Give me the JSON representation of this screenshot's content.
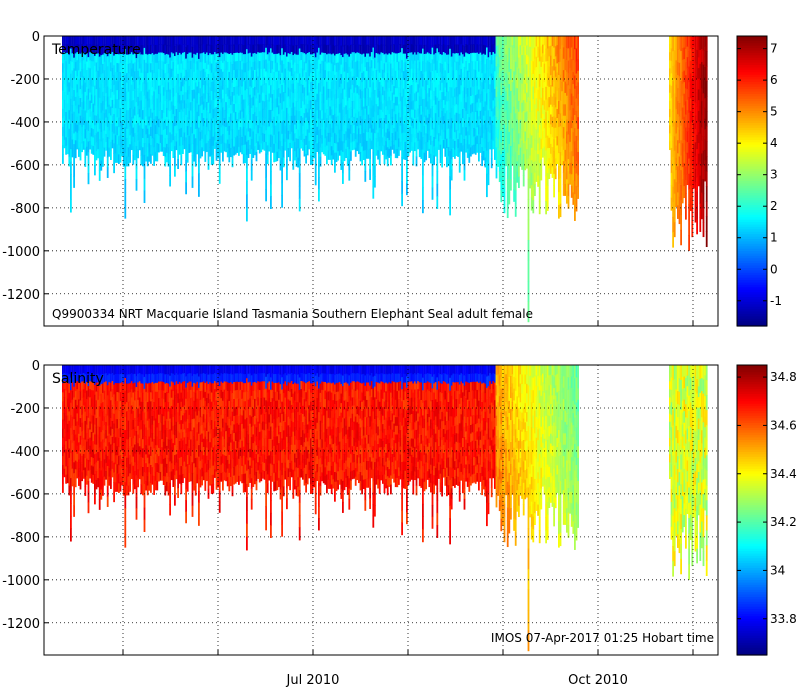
{
  "chart_data": [
    {
      "type": "heatmap",
      "title": "Temperature",
      "annotation": "Q9900334 NRT Macquarie Island Tasmania Southern Elephant Seal adult female",
      "y_ticks": [
        "0",
        "-200",
        "-400",
        "-600",
        "-800",
        "-1000",
        "-1200"
      ],
      "y_tick_values": [
        0,
        -200,
        -400,
        -600,
        -800,
        -1000,
        -1200
      ],
      "ylim": [
        -1350,
        0
      ],
      "x_ticks": [
        "Jul 2010",
        "Oct 2010"
      ],
      "colorbar": {
        "range": [
          -1.8,
          7.4
        ],
        "ticks": [
          "7",
          "6",
          "5",
          "4",
          "3",
          "2",
          "1",
          "0",
          "-1"
        ],
        "tick_values": [
          7,
          6,
          5,
          4,
          3,
          2,
          1,
          0,
          -1
        ]
      },
      "grid": true,
      "colormap": "jet"
    },
    {
      "type": "heatmap",
      "title": "Salinity",
      "annotation": "IMOS 07-Apr-2017 01:25 Hobart time",
      "y_ticks": [
        "0",
        "-200",
        "-400",
        "-600",
        "-800",
        "-1000",
        "-1200"
      ],
      "y_tick_values": [
        0,
        -200,
        -400,
        -600,
        -800,
        -1000,
        -1200
      ],
      "ylim": [
        -1350,
        0
      ],
      "x_ticks": [
        "Jul 2010",
        "Oct 2010"
      ],
      "colorbar": {
        "range": [
          33.65,
          34.85
        ],
        "ticks": [
          "34.8",
          "34.6",
          "34.4",
          "34.2",
          "34",
          "33.8"
        ],
        "tick_values": [
          34.8,
          34.6,
          34.4,
          34.2,
          34.0,
          33.8
        ]
      },
      "grid": true,
      "colormap": "jet"
    }
  ]
}
